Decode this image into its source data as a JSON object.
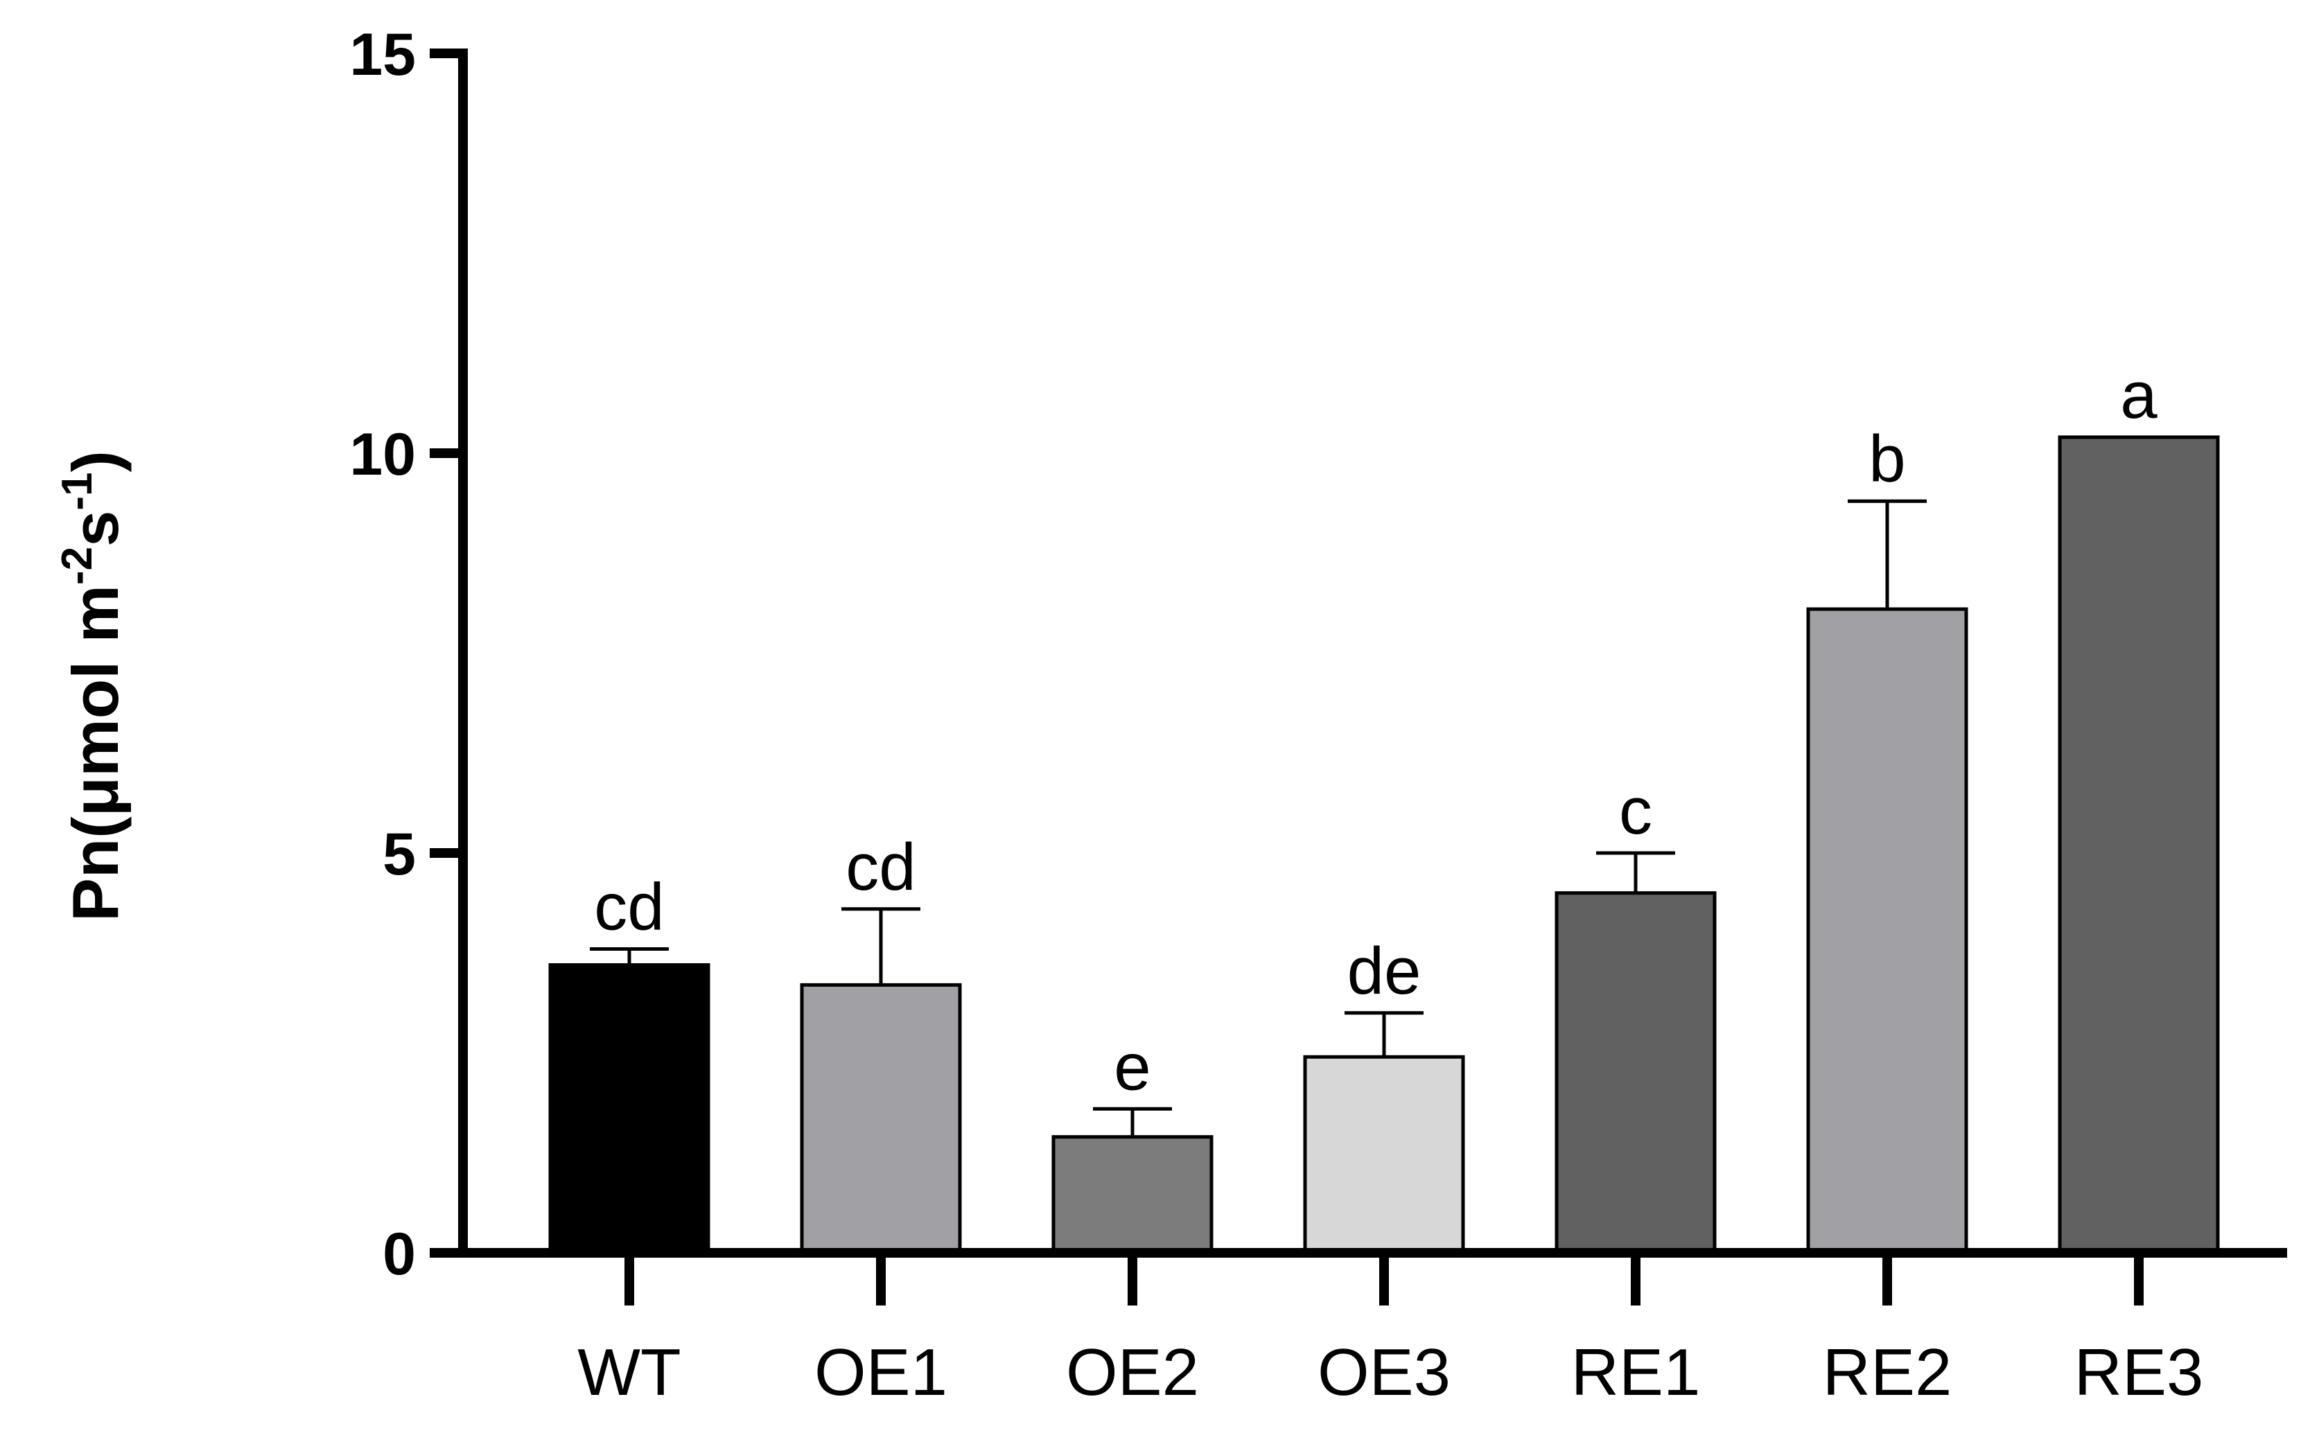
{
  "chart_data": {
    "type": "bar",
    "title": "",
    "xlabel": "",
    "ylabel": "Pn(μmol m-2s-1)",
    "ylabel_parts": {
      "main": "Pn(μmol m",
      "exp1": "-2",
      "mid": "s",
      "exp2": "-1",
      "close": ")"
    },
    "ylim": [
      0,
      15
    ],
    "yticks": [
      0,
      5,
      10,
      15
    ],
    "ytick_labels": [
      "0",
      "5",
      "10",
      "15"
    ],
    "categories": [
      "WT",
      "OE1",
      "OE2",
      "OE3",
      "RE1",
      "RE2",
      "RE3"
    ],
    "values": [
      3.6,
      3.35,
      1.45,
      2.45,
      4.5,
      8.05,
      10.2
    ],
    "errors": [
      0.2,
      0.95,
      0.35,
      0.55,
      0.5,
      1.35,
      0.0
    ],
    "significance": [
      "cd",
      "cd",
      "e",
      "de",
      "c",
      "b",
      "a"
    ],
    "colors": [
      "#000000",
      "#a1a1a5",
      "#7c7c7c",
      "#d7d7d7",
      "#616161",
      "#a1a1a5",
      "#616161"
    ],
    "grid": false,
    "legend": "none"
  }
}
